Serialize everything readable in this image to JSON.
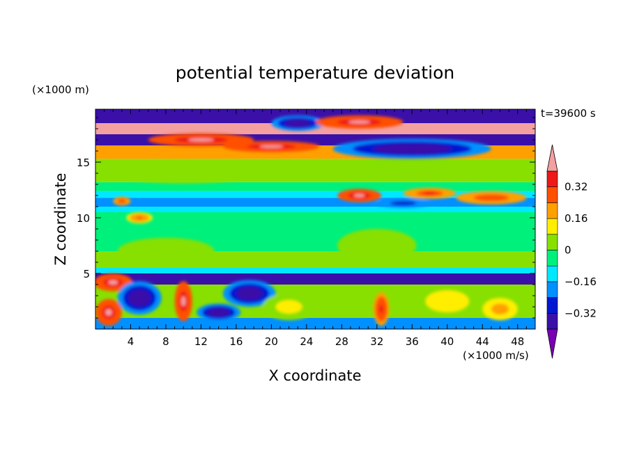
{
  "chart_data": {
    "type": "heatmap",
    "title": "potential temperature deviation",
    "xlabel": "X coordinate",
    "ylabel": "Z coordinate",
    "x_unit": "(×1000 m/s)",
    "y_unit": "(×1000 m)",
    "time_label": "t=39600 s",
    "xlim": [
      0,
      50
    ],
    "ylim": [
      0,
      19.75
    ],
    "x_ticks": [
      "4",
      "8",
      "12",
      "16",
      "20",
      "24",
      "28",
      "32",
      "36",
      "40",
      "44",
      "48"
    ],
    "y_ticks": [
      "5",
      "10",
      "15"
    ],
    "colorbar": {
      "labels": [
        "0.32",
        "0.16",
        "0",
        "-0.16",
        "-0.32"
      ],
      "levels": [
        -0.4,
        -0.32,
        -0.24,
        -0.16,
        -0.08,
        0,
        0.08,
        0.16,
        0.24,
        0.32,
        0.4
      ],
      "colors": [
        "#7a00b4",
        "#3a10a8",
        "#0018d0",
        "#0090ff",
        "#00e8ff",
        "#00f07c",
        "#88e000",
        "#ffee00",
        "#ffa000",
        "#ff5000",
        "#ee1818",
        "#f4a0a0"
      ]
    },
    "bands": [
      {
        "z0": 0,
        "z1": 1.0,
        "value": -0.2
      },
      {
        "z0": 1.0,
        "z1": 4.0,
        "value": 0.05
      },
      {
        "z0": 4.0,
        "z1": 5.0,
        "value": -0.38
      },
      {
        "z0": 5.0,
        "z1": 5.5,
        "value": -0.12
      },
      {
        "z0": 5.5,
        "z1": 7.0,
        "value": 0.02
      },
      {
        "z0": 7.0,
        "z1": 10.5,
        "value": -0.03
      },
      {
        "z0": 10.5,
        "z1": 11.0,
        "value": -0.12
      },
      {
        "z0": 11.0,
        "z1": 11.8,
        "value": -0.24
      },
      {
        "z0": 11.8,
        "z1": 12.4,
        "value": -0.12
      },
      {
        "z0": 12.4,
        "z1": 13.2,
        "value": -0.03
      },
      {
        "z0": 13.2,
        "z1": 15.3,
        "value": 0.03
      },
      {
        "z0": 15.3,
        "z1": 16.5,
        "value": 0.2
      },
      {
        "z0": 16.5,
        "z1": 17.5,
        "value": -0.36
      },
      {
        "z0": 17.5,
        "z1": 18.5,
        "value": 0.42
      },
      {
        "z0": 18.5,
        "z1": 19.75,
        "value": -0.38
      }
    ],
    "features": [
      {
        "x": 1.5,
        "z": 1.5,
        "rx": 1.5,
        "rz": 1.2,
        "value": 0.42
      },
      {
        "x": 2.0,
        "z": 4.2,
        "rx": 2.2,
        "rz": 0.8,
        "value": 0.42
      },
      {
        "x": 5.0,
        "z": 2.8,
        "rx": 2.5,
        "rz": 1.5,
        "value": -0.38
      },
      {
        "x": 10.0,
        "z": 2.5,
        "rx": 1.0,
        "rz": 1.8,
        "value": 0.42
      },
      {
        "x": 14.0,
        "z": 1.5,
        "rx": 2.5,
        "rz": 0.8,
        "value": -0.38
      },
      {
        "x": 17.5,
        "z": 3.2,
        "rx": 3.0,
        "rz": 1.2,
        "value": -0.38
      },
      {
        "x": 22.0,
        "z": 2.0,
        "rx": 3.0,
        "rz": 1.2,
        "value": 0.1
      },
      {
        "x": 32.5,
        "z": 1.8,
        "rx": 0.9,
        "rz": 1.5,
        "value": 0.35
      },
      {
        "x": 40.0,
        "z": 2.5,
        "rx": 2.5,
        "rz": 1.0,
        "value": 0.14
      },
      {
        "x": 46.0,
        "z": 1.8,
        "rx": 2.0,
        "rz": 1.0,
        "value": 0.2
      },
      {
        "x": 8.0,
        "z": 7.0,
        "rx": 5.5,
        "rz": 1.2,
        "value": 0.04
      },
      {
        "x": 32.0,
        "z": 7.5,
        "rx": 4.5,
        "rz": 1.5,
        "value": 0.04
      },
      {
        "x": 10.0,
        "z": 14.0,
        "rx": 8.0,
        "rz": 0.9,
        "value": 0.06
      },
      {
        "x": 30.0,
        "z": 12.0,
        "rx": 2.5,
        "rz": 0.6,
        "value": 0.42
      },
      {
        "x": 38.0,
        "z": 12.2,
        "rx": 3.0,
        "rz": 0.5,
        "value": 0.32
      },
      {
        "x": 45.0,
        "z": 11.8,
        "rx": 4.0,
        "rz": 0.6,
        "value": 0.3
      },
      {
        "x": 35.0,
        "z": 11.3,
        "rx": 3.0,
        "rz": 0.4,
        "value": -0.3
      },
      {
        "x": 3.0,
        "z": 11.5,
        "rx": 1.0,
        "rz": 0.4,
        "value": 0.28
      },
      {
        "x": 5.0,
        "z": 10.0,
        "rx": 1.5,
        "rz": 0.5,
        "value": 0.25
      },
      {
        "x": 12.0,
        "z": 17.0,
        "rx": 6.0,
        "rz": 0.6,
        "value": 0.42
      },
      {
        "x": 20.0,
        "z": 16.4,
        "rx": 5.5,
        "rz": 0.5,
        "value": 0.42
      },
      {
        "x": 23.0,
        "z": 18.5,
        "rx": 3.0,
        "rz": 0.7,
        "value": -0.38
      },
      {
        "x": 36.0,
        "z": 16.2,
        "rx": 9.0,
        "rz": 0.9,
        "value": -0.38
      },
      {
        "x": 30.0,
        "z": 18.6,
        "rx": 5.0,
        "rz": 0.6,
        "value": 0.42
      }
    ]
  }
}
